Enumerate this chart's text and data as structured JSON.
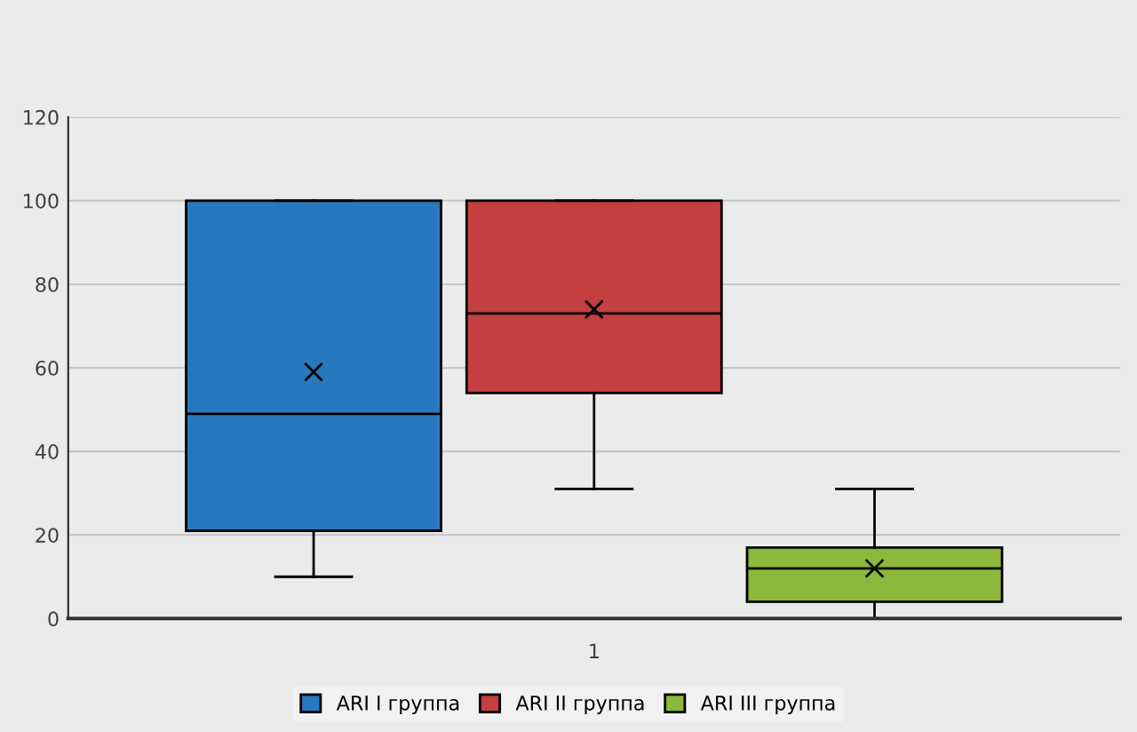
{
  "chart_data": {
    "type": "box",
    "categories": [
      "1"
    ],
    "ylim": [
      0,
      120
    ],
    "yticks": [
      0,
      20,
      40,
      60,
      80,
      100,
      120
    ],
    "grid": "y",
    "legend": "bottom",
    "marker": "cross",
    "series": [
      {
        "name": "ARI I группа",
        "color": "#2878bd",
        "boxes": [
          {
            "low": 10,
            "q1": 21,
            "median": 49,
            "q3": 100,
            "high": 100,
            "mean": 59
          }
        ]
      },
      {
        "name": "ARI II группа",
        "color": "#c33f40",
        "boxes": [
          {
            "low": 31,
            "q1": 54,
            "median": 73,
            "q3": 100,
            "high": 100,
            "mean": 74
          }
        ]
      },
      {
        "name": "ARI III группа",
        "color": "#8cb83c",
        "boxes": [
          {
            "low": 0,
            "q1": 4,
            "median": 12,
            "q3": 17,
            "high": 31,
            "mean": 12
          }
        ]
      }
    ]
  }
}
